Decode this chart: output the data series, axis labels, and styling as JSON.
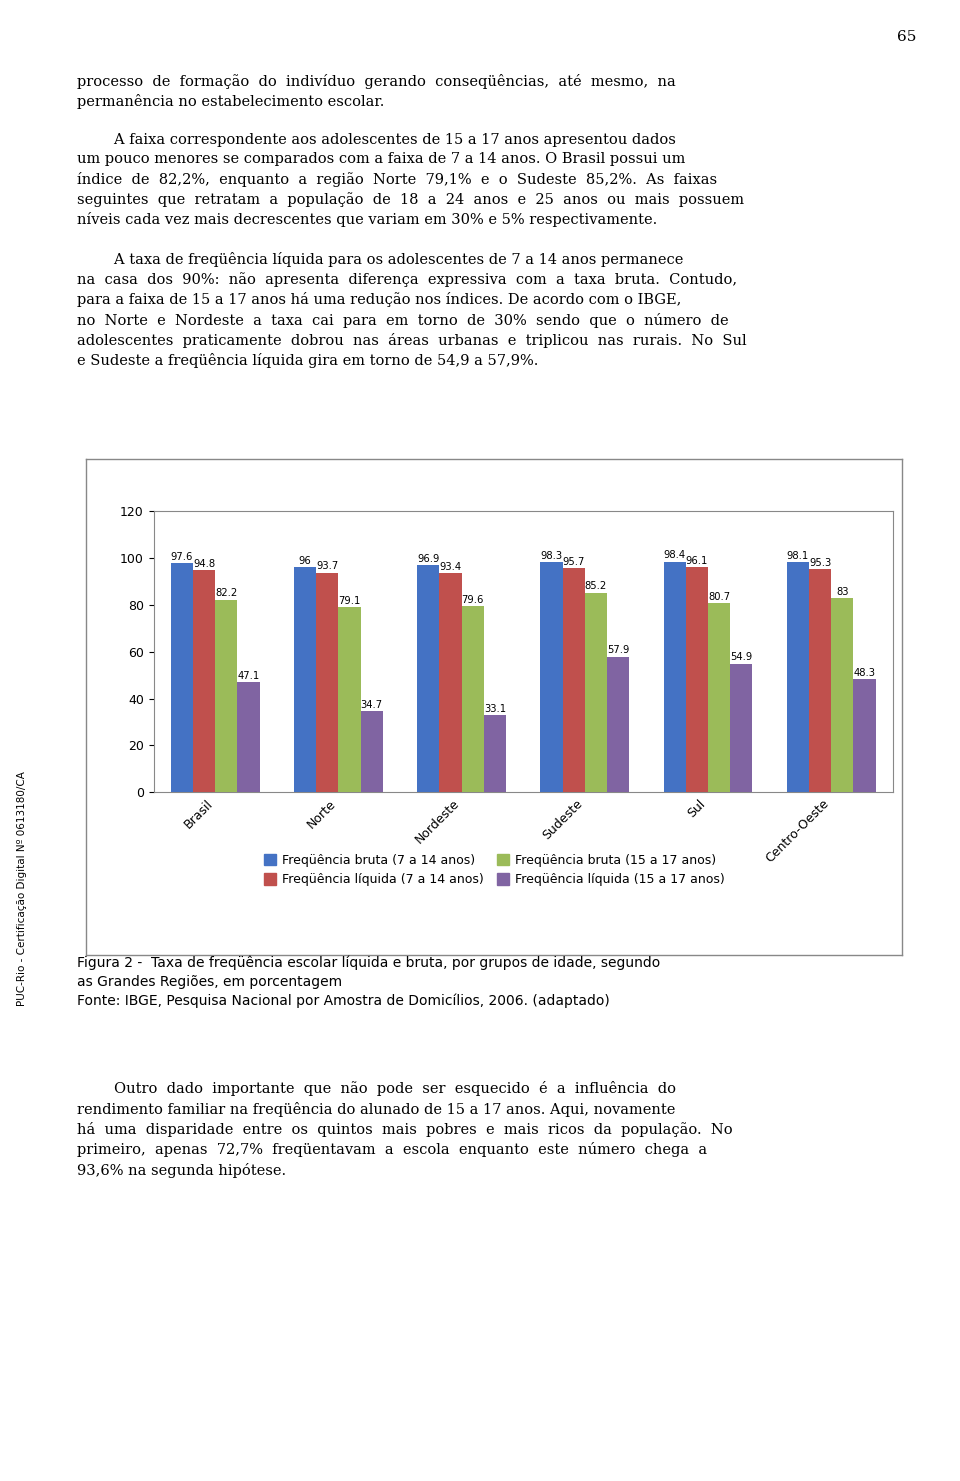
{
  "categories": [
    "Brasil",
    "Norte",
    "Nordeste",
    "Sudeste",
    "Sul",
    "Centro-Oeste"
  ],
  "series": [
    {
      "label": "Freqüência bruta (7 a 14 anos)",
      "color": "#4472C4",
      "values": [
        97.6,
        96.0,
        96.9,
        98.3,
        98.4,
        98.1
      ]
    },
    {
      "label": "Freqüência líquida (7 a 14 anos)",
      "color": "#C0504D",
      "values": [
        94.8,
        93.7,
        93.4,
        95.7,
        96.1,
        95.3
      ]
    },
    {
      "label": "Freqüência bruta (15 a 17 anos)",
      "color": "#9BBB59",
      "values": [
        82.2,
        79.1,
        79.6,
        85.2,
        80.7,
        83.0
      ]
    },
    {
      "label": "Freqüência líquida (15 a 17 anos)",
      "color": "#8064A2",
      "values": [
        47.1,
        34.7,
        33.1,
        57.9,
        54.9,
        48.3
      ]
    }
  ],
  "ylim": [
    0,
    120
  ],
  "yticks": [
    0,
    20,
    40,
    60,
    80,
    100,
    120
  ],
  "bar_width": 0.18,
  "value_fontsize": 7.2,
  "legend_fontsize": 9,
  "tick_fontsize": 9,
  "chart_bg": "#FFFFFF",
  "border_color": "#808080",
  "figure_bg": "#FFFFFF",
  "page_number": "65",
  "caption_line1": "Figura 2 -  Taxa de freqüência escolar líquida e bruta, por grupos de idade, segundo",
  "caption_line2": "as Grandes Regiões, em porcentagem",
  "caption_line3": "Fonte: IBGE, Pesquisa Nacional por Amostra de Domicílios, 2006. (adaptado)",
  "top_text_line1": "processo  de  formação  do  indivíduo  gerando  conseqüências,  até  mesmo,  na",
  "top_text_line2": "permanência no estabelecimento escolar.",
  "sidebar_text": "PUC-Rio - Certificação Digital Nº 0613180/CA"
}
